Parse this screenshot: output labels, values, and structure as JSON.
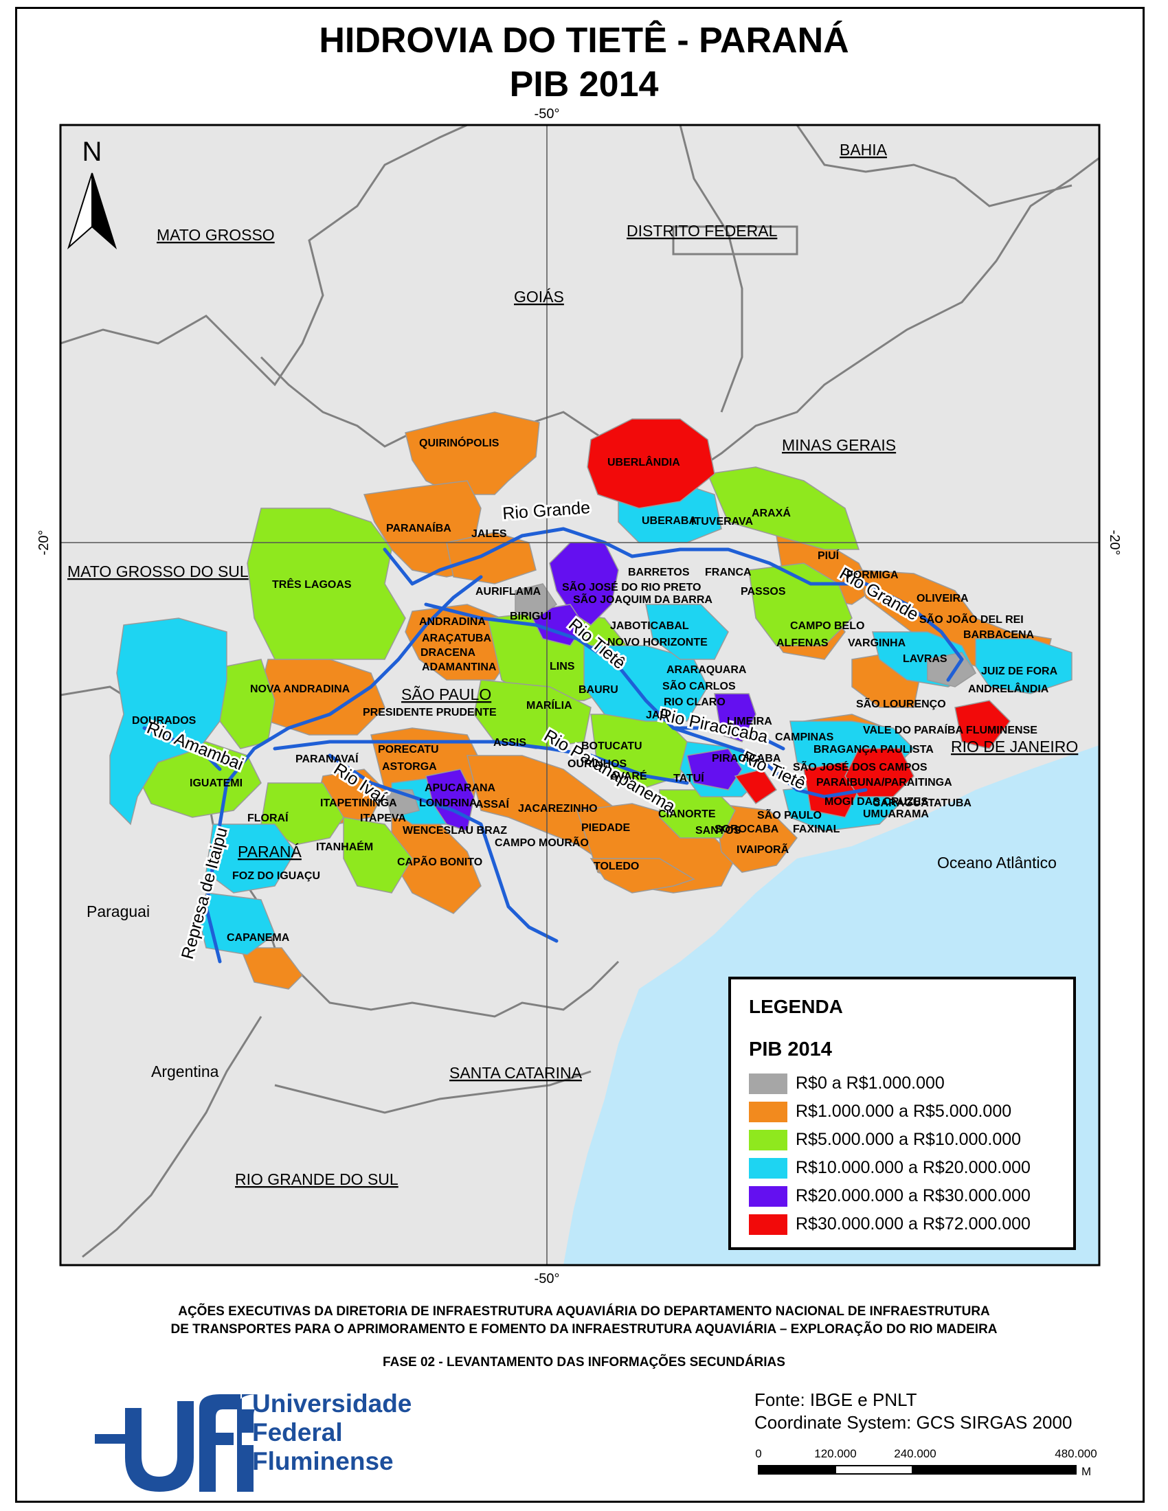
{
  "title": {
    "line1": "HIDROVIA DO TIETÊ - PARANÁ",
    "line2": "PIB 2014"
  },
  "graticule": {
    "top": "-50°",
    "bottom": "-50°",
    "left": "-20°",
    "right": "-20°"
  },
  "north_label": "N",
  "states": {
    "mato_grosso": "MATO GROSSO",
    "distrito_federal": "DISTRITO FEDERAL",
    "bahia": "BAHIA",
    "goias": "GOIÁS",
    "minas_gerais": "MINAS GERAIS",
    "mato_grosso_do_sul": "MATO GROSSO DO SUL",
    "sao_paulo": "SÃO PAULO",
    "rio_de_janeiro": "RIO DE JANEIRO",
    "parana": "PARANÁ",
    "santa_catarina": "SANTA CATARINA",
    "rio_grande_do_sul": "RIO GRANDE DO SUL"
  },
  "countries": {
    "paraguai": "Paraguai",
    "argentina": "Argentina"
  },
  "ocean": "Oceano Atlântico",
  "rivers": {
    "rio_grande_1": "Rio Grande",
    "rio_grande_2": "Rio Grande",
    "rio_tiete_1": "Rio Tietê",
    "rio_tiete_2": "Rio Tietê",
    "rio_piracicaba": "Rio Piracicaba",
    "rio_paranapanema": "Rio Paranapanema",
    "rio_amambai": "Rio Amambai",
    "rio_ivai": "Rio Ivaí",
    "represa_itaipu": "Represa de Itaipu"
  },
  "cities": [
    "QUIRINÓPOLIS",
    "UBERLÂNDIA",
    "UBERABA",
    "ARAXÁ",
    "PARANAÍBA",
    "JALES",
    "ITUVERAVA",
    "PIUÍ",
    "BARRETOS",
    "FRANCA",
    "FORMIGA",
    "TRÊS LAGOAS",
    "AURIFLAMA",
    "SÃO JOSÉ DO RIO PRETO",
    "SÃO JOAQUIM DA BARRA",
    "PASSOS",
    "OLIVEIRA",
    "SÃO JOÃO DEL REI",
    "BARBACENA",
    "ANDRADINA",
    "ARAÇATUBA",
    "BIRIGUI",
    "JABOTICABAL",
    "NOVO HORIZONTE",
    "CAMPO BELO",
    "ALFENAS",
    "VARGINHA",
    "LAVRAS",
    "DRACENA",
    "ADAMANTINA",
    "LINS",
    "ARARAQUARA",
    "JUIZ DE FORA",
    "NOVA ANDRADINA",
    "SÃO CARLOS",
    "ANDRELÂNDIA",
    "BAURU",
    "RIO CLARO",
    "MARÍLIA",
    "PRESIDENTE PRUDENTE",
    "JAÚ",
    "SÃO LOURENÇO",
    "LIMEIRA",
    "DOURADOS",
    "ASSIS",
    "BOTUCATU",
    "CAMPINAS",
    "VALE DO PARAÍBA FLUMINENSE",
    "PIRACICABA",
    "BRAGANÇA PAULISTA",
    "PORECATU",
    "PARANAVAÍ",
    "OURINHOS",
    "AVARÉ",
    "TATUÍ",
    "SÃO JOSÉ DOS CAMPOS",
    "IGUATEMI",
    "ASTORGA",
    "APUCARANA",
    "ASSAÍ",
    "JACAREZINHO",
    "SOROCABA",
    "PARAIBUNA/PARAITINGA",
    "LONDRINA",
    "CIANORTE",
    "ITAPETININGA",
    "SÃO PAULO",
    "MOGI DAS CRUZES",
    "CARAGUATATUBA",
    "UMUARAMA",
    "FLORAÍ",
    "ITAPEVA",
    "PIEDADE",
    "SANTOS",
    "FAXINAL",
    "WENCESLAU BRAZ",
    "CAMPO MOURÃO",
    "ITANHAÉM",
    "IVAIPORÃ",
    "CAPÃO BONITO",
    "TOLEDO",
    "FOZ DO IGUAÇU",
    "CAPANEMA"
  ],
  "legend": {
    "title": "LEGENDA",
    "subtitle": "PIB 2014",
    "items": [
      {
        "label": "R$0 a R$1.000.000",
        "color": "#a6a6a6"
      },
      {
        "label": "R$1.000.000 a R$5.000.000",
        "color": "#f28a1e"
      },
      {
        "label": "R$5.000.000 a R$10.000.000",
        "color": "#8fe81e"
      },
      {
        "label": "R$10.000.000 a R$20.000.000",
        "color": "#1ed4f2"
      },
      {
        "label": "R$20.000.000 a R$30.000.000",
        "color": "#6410f0"
      },
      {
        "label": "R$30.000.000 a R$72.000.000",
        "color": "#f20a0a"
      }
    ]
  },
  "footer": {
    "line1": "AÇÕES EXECUTIVAS DA DIRETORIA DE INFRAESTRUTURA AQUAVIÁRIA DO DEPARTAMENTO NACIONAL DE INFRAESTRUTURA",
    "line2": "DE TRANSPORTES PARA O APRIMORAMENTO E FOMENTO DA INFRAESTRUTURA AQUAVIÁRIA – EXPLORAÇÃO DO RIO MADEIRA",
    "line3": "FASE 02 - LEVANTAMENTO DAS INFORMAÇÕES SECUNDÁRIAS"
  },
  "logo": {
    "mark": "uff",
    "line1": "Universidade",
    "line2": "Federal",
    "line3": "Fluminense"
  },
  "source": {
    "line1": "Fonte: IBGE e PNLT",
    "line2": "Coordinate System: GCS SIRGAS 2000"
  },
  "scalebar": {
    "ticks": [
      "0",
      "120.000",
      "240.000",
      "480.000"
    ],
    "unit": "M"
  },
  "colors": {
    "land": "#e6e6e6",
    "ocean": "#bfe8fa",
    "river": "#1f5fd6",
    "border": "#808080"
  }
}
